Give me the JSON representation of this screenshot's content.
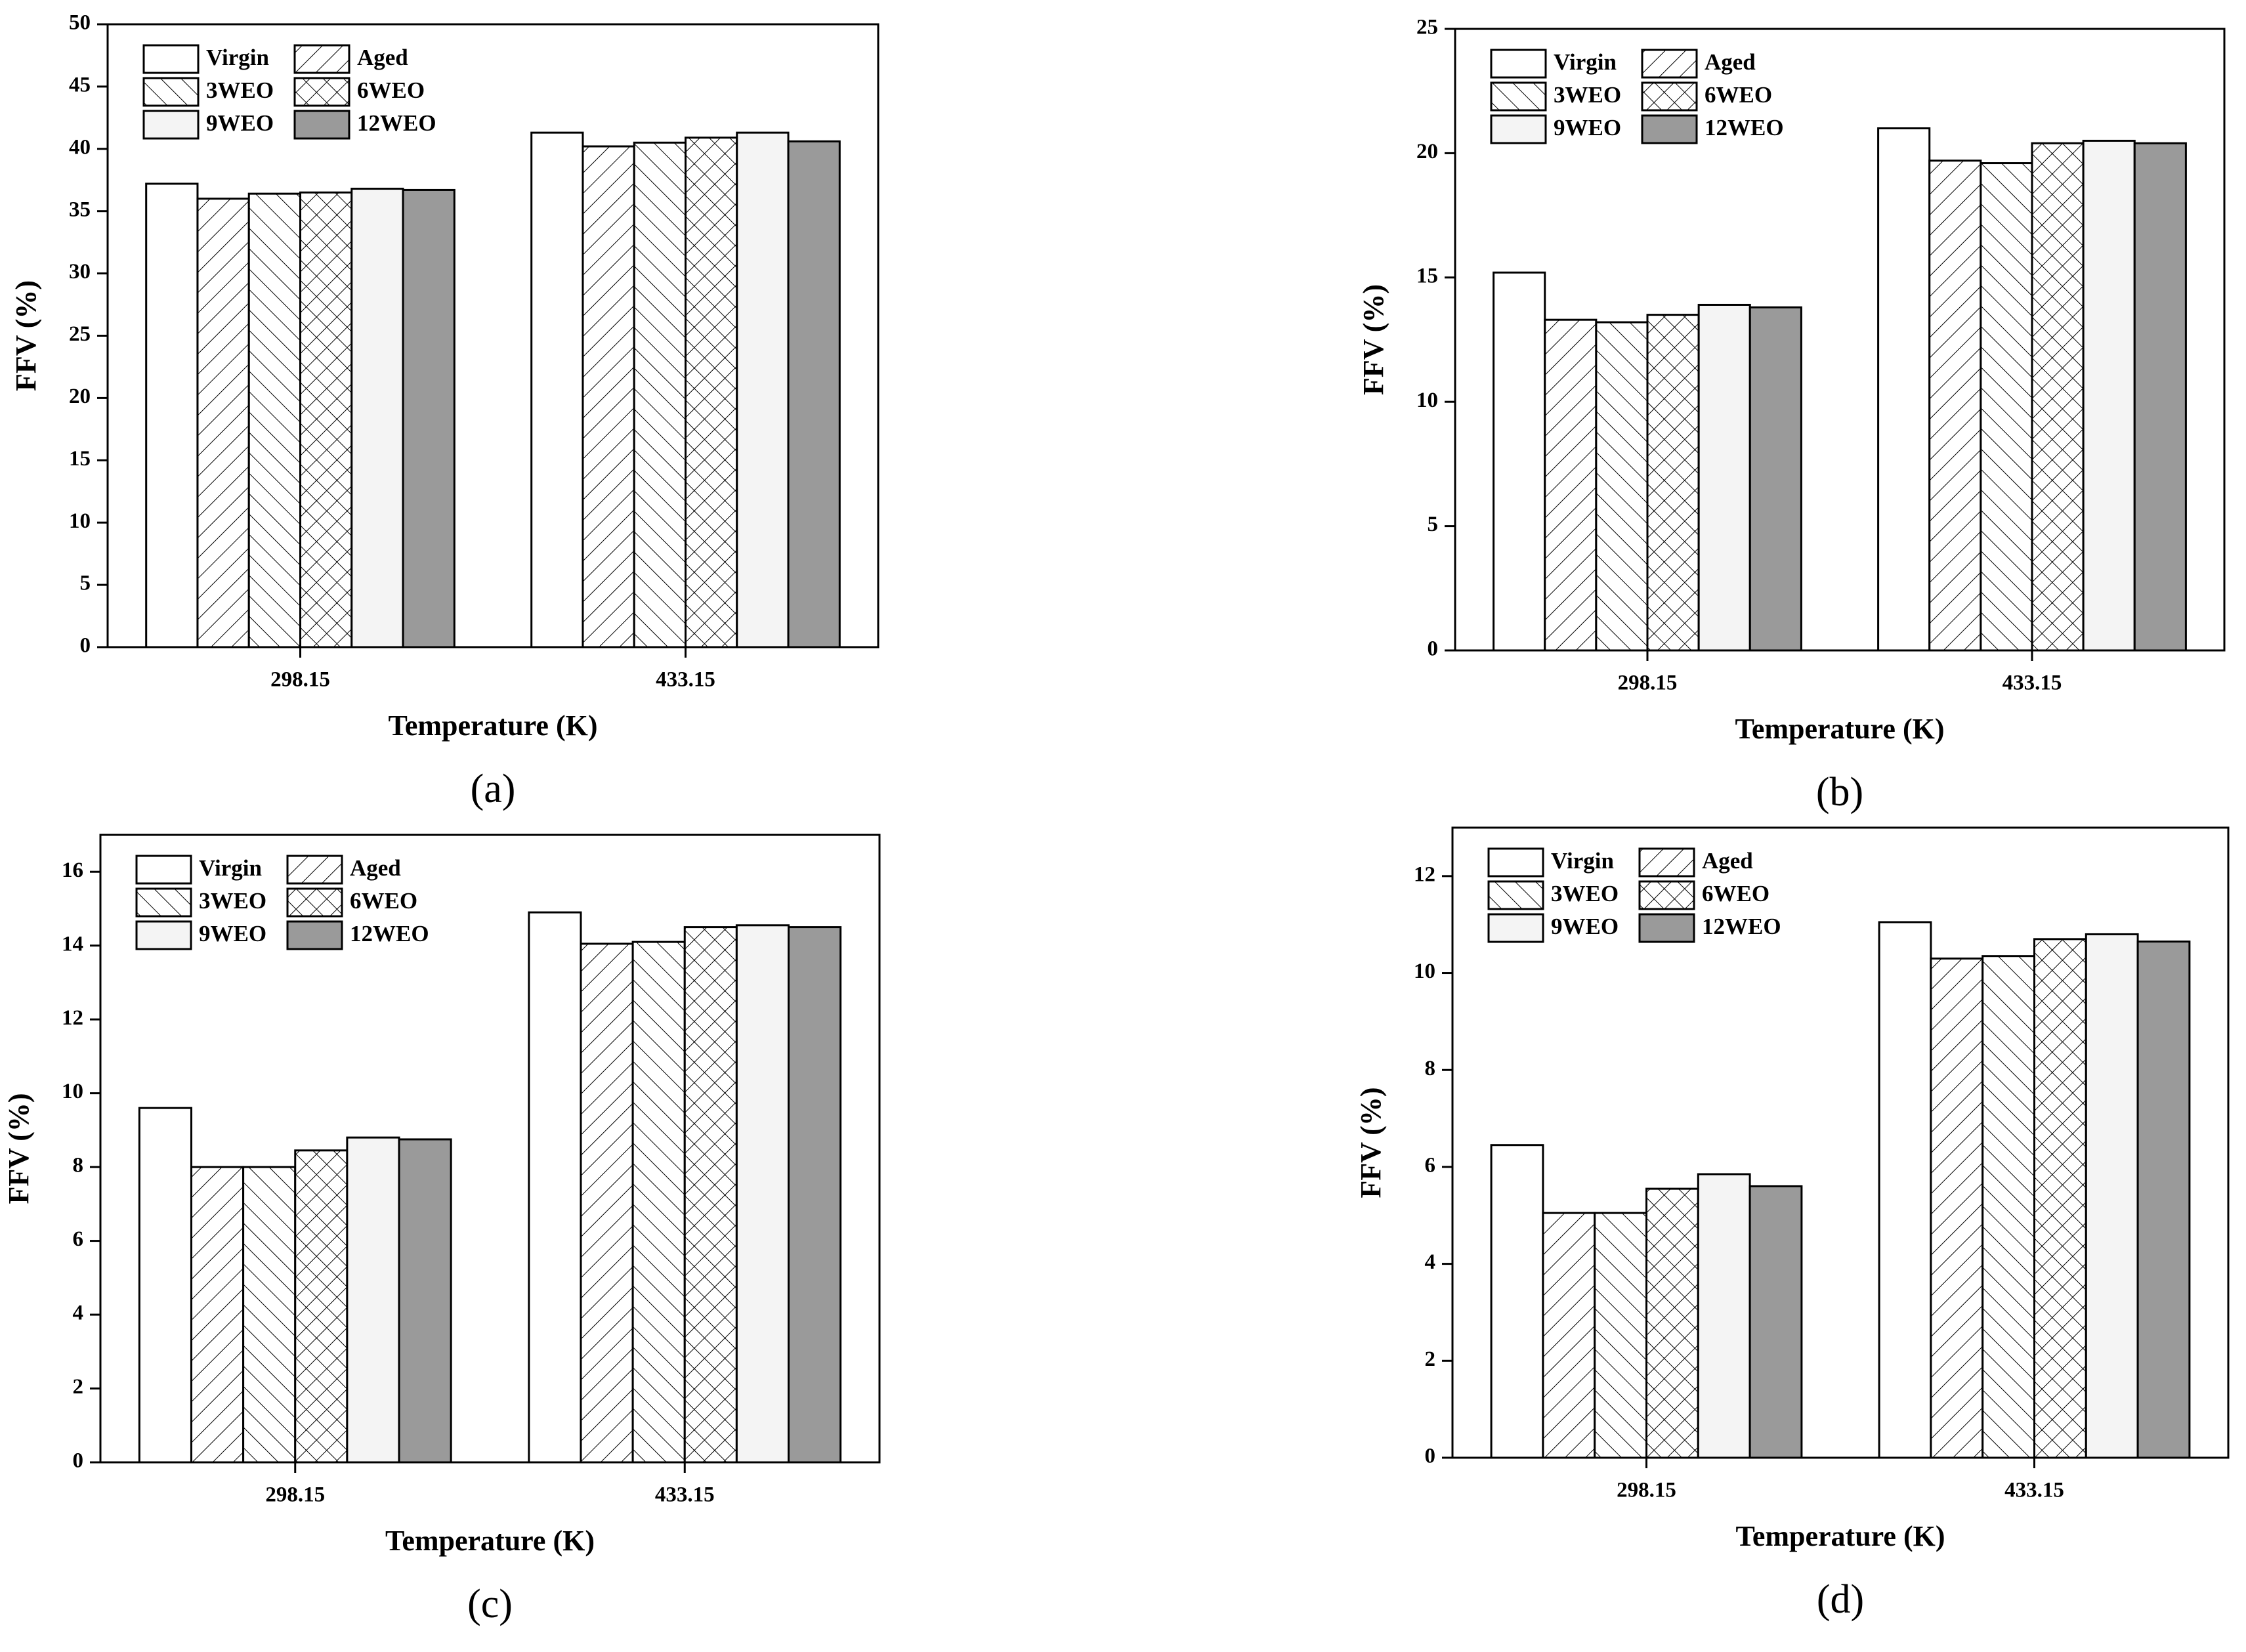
{
  "chart_data": [
    {
      "type": "bar",
      "label": "(a)",
      "x_label": "Temperature (K)",
      "y_label": "FFV (%)",
      "categories": [
        "298.15",
        "433.15"
      ],
      "ylim": [
        0,
        50
      ],
      "yticks": [
        0,
        5,
        10,
        15,
        20,
        25,
        30,
        35,
        40,
        45,
        50
      ],
      "series": [
        {
          "name": "Virgin",
          "color": "#ffffff",
          "pattern": "none",
          "values": [
            37.2,
            41.3
          ]
        },
        {
          "name": "Aged",
          "color": "#ffffff",
          "pattern": "slash",
          "values": [
            36.0,
            40.2
          ]
        },
        {
          "name": "3WEO",
          "color": "#ffffff",
          "pattern": "backslash",
          "values": [
            36.4,
            40.5
          ]
        },
        {
          "name": "6WEO",
          "color": "#ffffff",
          "pattern": "cross",
          "values": [
            36.5,
            40.9
          ]
        },
        {
          "name": "9WEO",
          "color": "#f4f4f4",
          "pattern": "none",
          "values": [
            36.8,
            41.3
          ]
        },
        {
          "name": "12WEO",
          "color": "#9a9a9a",
          "pattern": "none",
          "values": [
            36.7,
            40.6
          ]
        }
      ]
    },
    {
      "type": "bar",
      "label": "(b)",
      "x_label": "Temperature (K)",
      "y_label": "FFV (%)",
      "categories": [
        "298.15",
        "433.15"
      ],
      "ylim": [
        0,
        25
      ],
      "yticks": [
        0,
        5,
        10,
        15,
        20,
        25
      ],
      "series": [
        {
          "name": "Virgin",
          "color": "#ffffff",
          "pattern": "none",
          "values": [
            15.2,
            21.0
          ]
        },
        {
          "name": "Aged",
          "color": "#ffffff",
          "pattern": "slash",
          "values": [
            13.3,
            19.7
          ]
        },
        {
          "name": "3WEO",
          "color": "#ffffff",
          "pattern": "backslash",
          "values": [
            13.2,
            19.6
          ]
        },
        {
          "name": "6WEO",
          "color": "#ffffff",
          "pattern": "cross",
          "values": [
            13.5,
            20.4
          ]
        },
        {
          "name": "9WEO",
          "color": "#f4f4f4",
          "pattern": "none",
          "values": [
            13.9,
            20.5
          ]
        },
        {
          "name": "12WEO",
          "color": "#9a9a9a",
          "pattern": "none",
          "values": [
            13.8,
            20.4
          ]
        }
      ]
    },
    {
      "type": "bar",
      "label": "(c)",
      "x_label": "Temperature (K)",
      "y_label": "FFV (%)",
      "categories": [
        "298.15",
        "433.15"
      ],
      "ylim": [
        0,
        17
      ],
      "yticks": [
        0,
        2,
        4,
        6,
        8,
        10,
        12,
        14,
        16
      ],
      "series": [
        {
          "name": "Virgin",
          "color": "#ffffff",
          "pattern": "none",
          "values": [
            9.6,
            14.9
          ]
        },
        {
          "name": "Aged",
          "color": "#ffffff",
          "pattern": "slash",
          "values": [
            8.0,
            14.05
          ]
        },
        {
          "name": "3WEO",
          "color": "#ffffff",
          "pattern": "backslash",
          "values": [
            8.0,
            14.1
          ]
        },
        {
          "name": "6WEO",
          "color": "#ffffff",
          "pattern": "cross",
          "values": [
            8.45,
            14.5
          ]
        },
        {
          "name": "9WEO",
          "color": "#f4f4f4",
          "pattern": "none",
          "values": [
            8.8,
            14.55
          ]
        },
        {
          "name": "12WEO",
          "color": "#9a9a9a",
          "pattern": "none",
          "values": [
            8.75,
            14.5
          ]
        }
      ]
    },
    {
      "type": "bar",
      "label": "(d)",
      "x_label": "Temperature (K)",
      "y_label": "FFV (%)",
      "categories": [
        "298.15",
        "433.15"
      ],
      "ylim": [
        0,
        13
      ],
      "yticks": [
        0,
        2,
        4,
        6,
        8,
        10,
        12
      ],
      "series": [
        {
          "name": "Virgin",
          "color": "#ffffff",
          "pattern": "none",
          "values": [
            6.45,
            11.05
          ]
        },
        {
          "name": "Aged",
          "color": "#ffffff",
          "pattern": "slash",
          "values": [
            5.05,
            10.3
          ]
        },
        {
          "name": "3WEO",
          "color": "#ffffff",
          "pattern": "backslash",
          "values": [
            5.05,
            10.35
          ]
        },
        {
          "name": "6WEO",
          "color": "#ffffff",
          "pattern": "cross",
          "values": [
            5.55,
            10.7
          ]
        },
        {
          "name": "9WEO",
          "color": "#f4f4f4",
          "pattern": "none",
          "values": [
            5.85,
            10.8
          ]
        },
        {
          "name": "12WEO",
          "color": "#9a9a9a",
          "pattern": "none",
          "values": [
            5.6,
            10.65
          ]
        }
      ]
    }
  ]
}
